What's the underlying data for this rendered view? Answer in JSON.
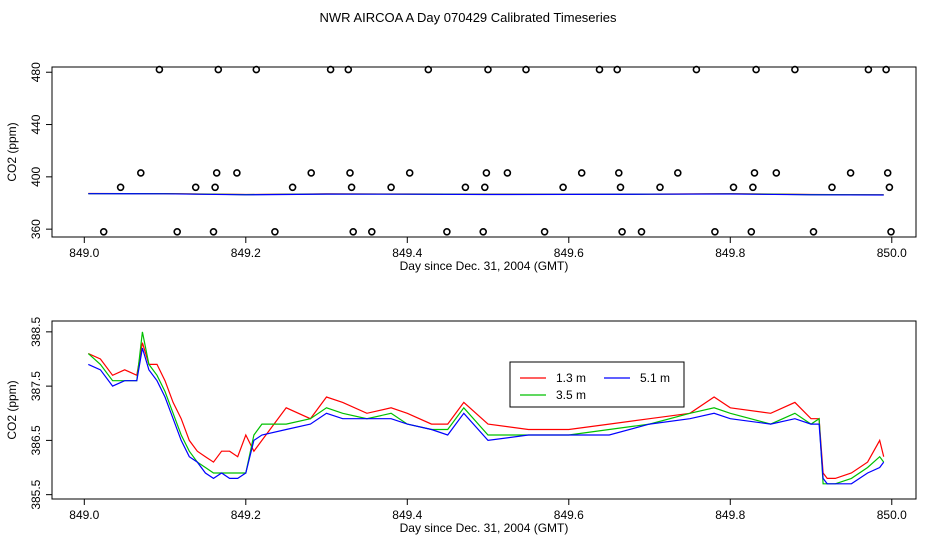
{
  "title": "NWR AIRCOA A  Day 070429  Calibrated Timeseries",
  "chart_data": [
    {
      "type": "scatter",
      "panel": "top",
      "xlabel": "Day since Dec. 31, 2004 (GMT)",
      "ylabel": "CO2 (ppm)",
      "xlim": [
        848.96,
        850.03
      ],
      "ylim": [
        354,
        484
      ],
      "xticks": [
        849.0,
        849.2,
        849.4,
        849.6,
        849.8,
        850.0
      ],
      "xtick_labels": [
        "849.0",
        "849.2",
        "849.4",
        "849.6",
        "849.8",
        "850.0"
      ],
      "yticks": [
        360,
        400,
        440,
        480
      ],
      "ytick_labels": [
        "360",
        "400",
        "440",
        "480"
      ],
      "points": [
        {
          "x": 849.024,
          "y": 358
        },
        {
          "x": 849.045,
          "y": 392
        },
        {
          "x": 849.07,
          "y": 403
        },
        {
          "x": 849.093,
          "y": 482
        },
        {
          "x": 849.115,
          "y": 358
        },
        {
          "x": 849.138,
          "y": 392
        },
        {
          "x": 849.16,
          "y": 358
        },
        {
          "x": 849.162,
          "y": 392
        },
        {
          "x": 849.164,
          "y": 403
        },
        {
          "x": 849.166,
          "y": 482
        },
        {
          "x": 849.189,
          "y": 403
        },
        {
          "x": 849.213,
          "y": 482
        },
        {
          "x": 849.236,
          "y": 358
        },
        {
          "x": 849.258,
          "y": 392
        },
        {
          "x": 849.281,
          "y": 403
        },
        {
          "x": 849.305,
          "y": 482
        },
        {
          "x": 849.327,
          "y": 482
        },
        {
          "x": 849.329,
          "y": 403
        },
        {
          "x": 849.331,
          "y": 392
        },
        {
          "x": 849.333,
          "y": 358
        },
        {
          "x": 849.356,
          "y": 358
        },
        {
          "x": 849.38,
          "y": 392
        },
        {
          "x": 849.403,
          "y": 403
        },
        {
          "x": 849.426,
          "y": 482
        },
        {
          "x": 849.449,
          "y": 358
        },
        {
          "x": 849.472,
          "y": 392
        },
        {
          "x": 849.494,
          "y": 358
        },
        {
          "x": 849.496,
          "y": 392
        },
        {
          "x": 849.498,
          "y": 403
        },
        {
          "x": 849.5,
          "y": 482
        },
        {
          "x": 849.524,
          "y": 403
        },
        {
          "x": 849.547,
          "y": 482
        },
        {
          "x": 849.57,
          "y": 358
        },
        {
          "x": 849.593,
          "y": 392
        },
        {
          "x": 849.616,
          "y": 403
        },
        {
          "x": 849.638,
          "y": 482
        },
        {
          "x": 849.66,
          "y": 482
        },
        {
          "x": 849.662,
          "y": 403
        },
        {
          "x": 849.664,
          "y": 392
        },
        {
          "x": 849.666,
          "y": 358
        },
        {
          "x": 849.69,
          "y": 358
        },
        {
          "x": 849.713,
          "y": 392
        },
        {
          "x": 849.735,
          "y": 403
        },
        {
          "x": 849.758,
          "y": 482
        },
        {
          "x": 849.781,
          "y": 358
        },
        {
          "x": 849.804,
          "y": 392
        },
        {
          "x": 849.826,
          "y": 358
        },
        {
          "x": 849.828,
          "y": 392
        },
        {
          "x": 849.83,
          "y": 403
        },
        {
          "x": 849.832,
          "y": 482
        },
        {
          "x": 849.857,
          "y": 403
        },
        {
          "x": 849.88,
          "y": 482
        },
        {
          "x": 849.903,
          "y": 358
        },
        {
          "x": 849.926,
          "y": 392
        },
        {
          "x": 849.949,
          "y": 403
        },
        {
          "x": 849.971,
          "y": 482
        },
        {
          "x": 849.993,
          "y": 482
        },
        {
          "x": 849.995,
          "y": 403
        },
        {
          "x": 849.997,
          "y": 392
        },
        {
          "x": 849.999,
          "y": 358
        }
      ],
      "series": [
        {
          "name": "1.3 m",
          "color": "#ff0000",
          "x": [
            849.005,
            849.1,
            849.2,
            849.3,
            849.4,
            849.5,
            849.6,
            849.7,
            849.8,
            849.9,
            849.99
          ],
          "values": [
            387.3,
            387.2,
            386.5,
            387.0,
            386.9,
            386.7,
            386.6,
            386.8,
            387.1,
            386.5,
            386.3
          ]
        },
        {
          "name": "3.5 m",
          "color": "#00c000",
          "x": [
            849.005,
            849.1,
            849.2,
            849.3,
            849.4,
            849.5,
            849.6,
            849.7,
            849.8,
            849.9,
            849.99
          ],
          "values": [
            387.2,
            387.1,
            386.4,
            386.9,
            386.8,
            386.6,
            386.6,
            386.7,
            387.0,
            386.4,
            386.2
          ]
        },
        {
          "name": "5.1 m",
          "color": "#0000ff",
          "x": [
            849.005,
            849.1,
            849.2,
            849.3,
            849.4,
            849.5,
            849.6,
            849.7,
            849.8,
            849.9,
            849.99
          ],
          "values": [
            387.1,
            387.0,
            386.3,
            386.8,
            386.7,
            386.5,
            386.6,
            386.7,
            386.9,
            386.3,
            386.1
          ]
        }
      ]
    },
    {
      "type": "line",
      "panel": "bottom",
      "xlabel": "Day since Dec. 31, 2004 (GMT)",
      "ylabel": "CO2 (ppm)",
      "xlim": [
        848.96,
        850.03
      ],
      "ylim": [
        385.42,
        388.7
      ],
      "xticks": [
        849.0,
        849.2,
        849.4,
        849.6,
        849.8,
        850.0
      ],
      "xtick_labels": [
        "849.0",
        "849.2",
        "849.4",
        "849.6",
        "849.8",
        "850.0"
      ],
      "yticks": [
        385.5,
        386.5,
        387.5,
        388.5
      ],
      "ytick_labels": [
        "385.5",
        "386.5",
        "387.5",
        "388.5"
      ],
      "legend": {
        "position": "top-right-center",
        "entries": [
          "1.3 m",
          "3.5 m",
          "5.1 m"
        ]
      },
      "series": [
        {
          "name": "1.3 m",
          "color": "#ff0000",
          "x": [
            849.005,
            849.02,
            849.035,
            849.05,
            849.065,
            849.072,
            849.08,
            849.09,
            849.1,
            849.11,
            849.12,
            849.13,
            849.14,
            849.15,
            849.16,
            849.17,
            849.18,
            849.19,
            849.2,
            849.21,
            849.22,
            849.25,
            849.28,
            849.3,
            849.32,
            849.35,
            849.38,
            849.4,
            849.43,
            849.45,
            849.47,
            849.5,
            849.55,
            849.6,
            849.65,
            849.7,
            849.75,
            849.78,
            849.8,
            849.85,
            849.88,
            849.9,
            849.91,
            849.915,
            849.92,
            849.93,
            849.95,
            849.97,
            849.985,
            849.99
          ],
          "values": [
            388.1,
            388.0,
            387.7,
            387.8,
            387.7,
            388.3,
            387.9,
            387.9,
            387.6,
            387.2,
            386.9,
            386.5,
            386.3,
            386.2,
            386.1,
            386.3,
            386.3,
            386.2,
            386.6,
            386.3,
            386.5,
            387.1,
            386.9,
            387.3,
            387.2,
            387.0,
            387.1,
            387.0,
            386.8,
            386.8,
            387.2,
            386.8,
            386.7,
            386.7,
            386.8,
            386.9,
            387.0,
            387.3,
            387.1,
            387.0,
            387.2,
            386.9,
            386.9,
            385.9,
            385.8,
            385.8,
            385.9,
            386.1,
            386.5,
            386.2
          ]
        },
        {
          "name": "3.5 m",
          "color": "#00c000",
          "x": [
            849.005,
            849.02,
            849.035,
            849.05,
            849.065,
            849.072,
            849.08,
            849.09,
            849.1,
            849.11,
            849.12,
            849.13,
            849.14,
            849.15,
            849.16,
            849.17,
            849.18,
            849.19,
            849.2,
            849.21,
            849.22,
            849.25,
            849.28,
            849.3,
            849.32,
            849.35,
            849.38,
            849.4,
            849.43,
            849.45,
            849.47,
            849.5,
            849.55,
            849.6,
            849.65,
            849.7,
            849.75,
            849.78,
            849.8,
            849.85,
            849.88,
            849.9,
            849.91,
            849.915,
            849.92,
            849.93,
            849.95,
            849.97,
            849.985,
            849.99
          ],
          "values": [
            388.1,
            387.9,
            387.6,
            387.6,
            387.6,
            388.5,
            387.9,
            387.7,
            387.4,
            387.0,
            386.6,
            386.3,
            386.1,
            386.0,
            385.9,
            385.9,
            385.9,
            385.9,
            385.9,
            386.6,
            386.8,
            386.8,
            386.9,
            387.1,
            387.0,
            386.9,
            387.0,
            386.8,
            386.7,
            386.7,
            387.1,
            386.6,
            386.6,
            386.6,
            386.7,
            386.8,
            387.0,
            387.1,
            387.0,
            386.8,
            387.0,
            386.8,
            386.9,
            385.7,
            385.7,
            385.7,
            385.8,
            386.0,
            386.2,
            386.1
          ]
        },
        {
          "name": "5.1 m",
          "color": "#0000ff",
          "x": [
            849.005,
            849.02,
            849.035,
            849.05,
            849.065,
            849.072,
            849.08,
            849.09,
            849.1,
            849.11,
            849.12,
            849.13,
            849.14,
            849.15,
            849.16,
            849.17,
            849.18,
            849.19,
            849.2,
            849.21,
            849.22,
            849.25,
            849.28,
            849.3,
            849.32,
            849.35,
            849.38,
            849.4,
            849.43,
            849.45,
            849.47,
            849.5,
            849.55,
            849.6,
            849.65,
            849.7,
            849.75,
            849.78,
            849.8,
            849.85,
            849.88,
            849.9,
            849.91,
            849.915,
            849.92,
            849.93,
            849.95,
            849.97,
            849.985,
            849.99
          ],
          "values": [
            387.9,
            387.8,
            387.5,
            387.6,
            387.6,
            388.2,
            387.8,
            387.6,
            387.3,
            386.9,
            386.5,
            386.2,
            386.1,
            385.9,
            385.8,
            385.9,
            385.8,
            385.8,
            385.9,
            386.5,
            386.6,
            386.7,
            386.8,
            387.0,
            386.9,
            386.9,
            386.9,
            386.8,
            386.7,
            386.6,
            387.0,
            386.5,
            386.6,
            386.6,
            386.6,
            386.8,
            386.9,
            387.0,
            386.9,
            386.8,
            386.9,
            386.8,
            386.8,
            385.8,
            385.7,
            385.7,
            385.7,
            385.9,
            386.0,
            386.1
          ]
        }
      ]
    }
  ]
}
